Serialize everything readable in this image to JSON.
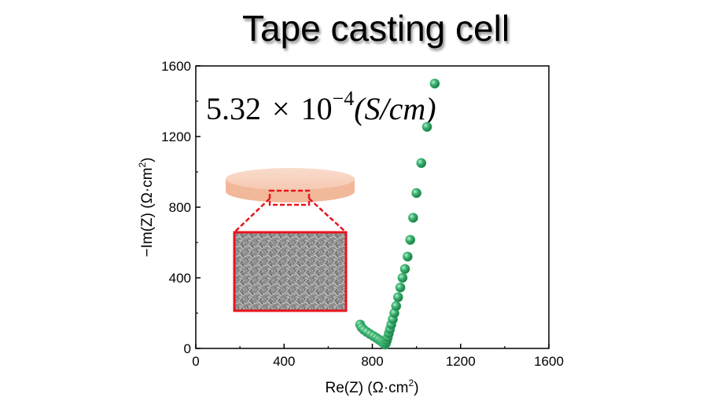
{
  "chart_data": {
    "type": "scatter",
    "title": "Tape casting cell",
    "xlabel": "Re(Z) (Ω·cm",
    "xlabel_sup": "2",
    "xlabel_end": ")",
    "ylabel": "−Im(Z) (Ω·cm",
    "ylabel_sup": "2",
    "ylabel_end": ")",
    "xlim": [
      0,
      1600
    ],
    "ylim": [
      0,
      1600
    ],
    "xticks": [
      0,
      400,
      800,
      1200,
      1600
    ],
    "yticks": [
      0,
      400,
      800,
      1200,
      1600
    ],
    "marker_color": "#3cb371",
    "annotation": {
      "mantissa": "5.32",
      "times": "×",
      "base": "10",
      "exponent": "−4",
      "unit": "(S/cm)"
    },
    "points": [
      [
        745,
        135
      ],
      [
        752,
        118
      ],
      [
        762,
        105
      ],
      [
        775,
        93
      ],
      [
        790,
        81
      ],
      [
        805,
        70
      ],
      [
        818,
        60
      ],
      [
        830,
        50
      ],
      [
        840,
        41
      ],
      [
        848,
        33
      ],
      [
        854,
        26
      ],
      [
        858,
        22
      ],
      [
        862,
        30
      ],
      [
        866,
        45
      ],
      [
        870,
        62
      ],
      [
        875,
        85
      ],
      [
        880,
        108
      ],
      [
        886,
        135
      ],
      [
        893,
        165
      ],
      [
        900,
        200
      ],
      [
        908,
        240
      ],
      [
        917,
        290
      ],
      [
        927,
        345
      ],
      [
        937,
        400
      ],
      [
        948,
        450
      ],
      [
        960,
        520
      ],
      [
        972,
        615
      ],
      [
        985,
        740
      ],
      [
        1000,
        880
      ],
      [
        1022,
        1050
      ],
      [
        1048,
        1255
      ],
      [
        1083,
        1500
      ]
    ]
  }
}
